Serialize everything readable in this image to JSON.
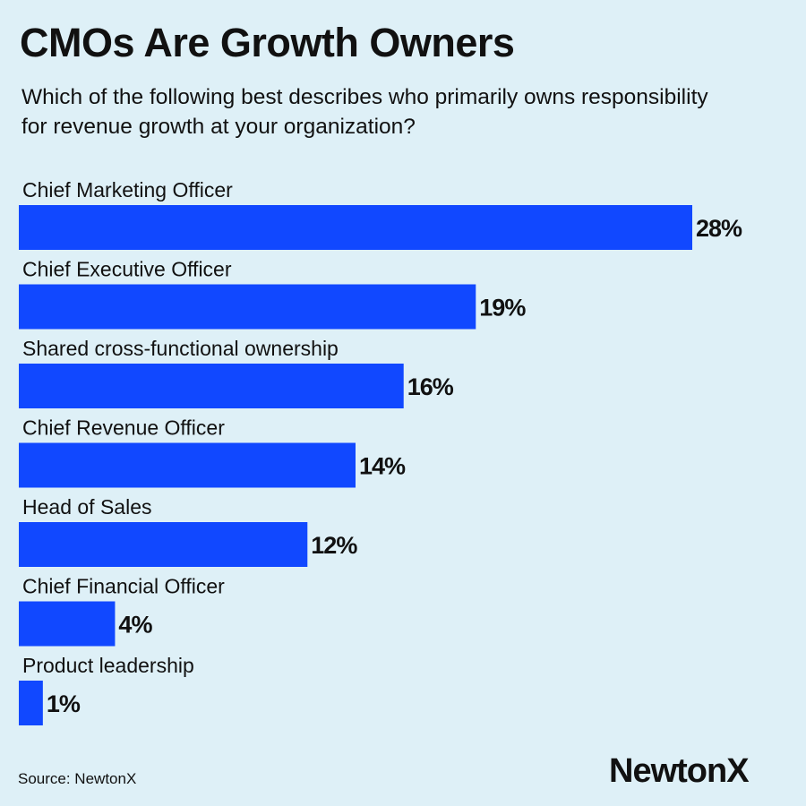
{
  "chart_data": {
    "type": "bar",
    "orientation": "horizontal",
    "title": "CMOs Are Growth Owners",
    "subtitle": "Which of the following best describes who primarily owns responsibility for revenue growth at your organization?",
    "categories": [
      "Chief Marketing Officer",
      "Chief Executive Officer",
      "Shared cross-functional ownership",
      "Chief Revenue Officer",
      "Head of Sales",
      "Chief Financial Officer",
      "Product leadership"
    ],
    "values": [
      28,
      19,
      16,
      14,
      12,
      4,
      1
    ],
    "value_suffix": "%",
    "bar_color": "#1148ff",
    "grid": false,
    "legend": "none"
  },
  "footer": {
    "source": "Source: NewtonX",
    "logo": "NewtonX"
  }
}
